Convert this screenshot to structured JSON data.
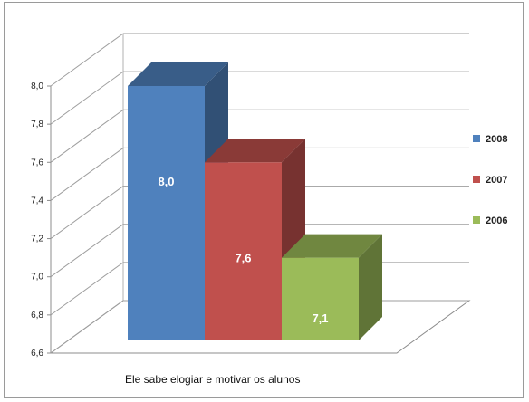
{
  "chart_data": {
    "type": "bar",
    "categories": [
      "Ele sabe elogiar e motivar os alunos"
    ],
    "series": [
      {
        "name": "2008",
        "value": 8.0,
        "label": "8,0",
        "color": "#4f81bd"
      },
      {
        "name": "2007",
        "value": 7.6,
        "label": "7,6",
        "color": "#c0504d"
      },
      {
        "name": "2006",
        "value": 7.1,
        "label": "7,1",
        "color": "#9bbb59"
      }
    ],
    "ylim": [
      6.6,
      8.0
    ],
    "yticks": [
      "6,6",
      "6,8",
      "7,0",
      "7,2",
      "7,4",
      "7,6",
      "7,8",
      "8,0"
    ],
    "grid": true,
    "legend_position": "right",
    "three_d": true
  }
}
